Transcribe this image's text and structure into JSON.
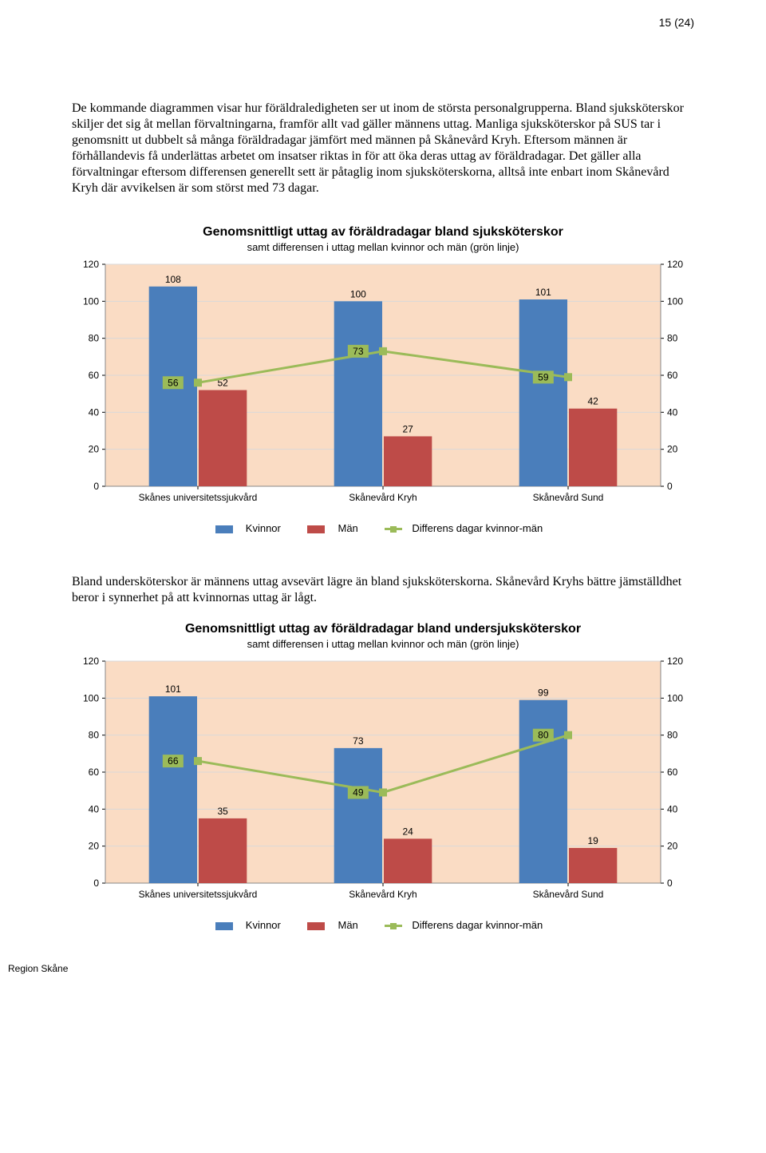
{
  "page": {
    "number": "15 (24)"
  },
  "footer": "Region Skåne",
  "intro": "De kommande diagrammen visar hur föräldraledigheten ser ut inom de största personalgrupperna. Bland sjuksköterskor skiljer det sig åt mellan förvaltningarna, framför allt vad gäller männens uttag. Manliga sjuksköterskor på SUS tar i genomsnitt ut dubbelt så många föräldradagar jämfört med männen på Skånevård Kryh. Eftersom männen är förhållandevis få underlättas arbetet om insatser riktas in för att öka deras uttag av föräldradagar. Det gäller alla förvaltningar eftersom differensen generellt sett är påtaglig inom sjuksköterskorna, alltså inte enbart inom Skånevård Kryh där avvikelsen är som störst med 73 dagar.",
  "mid": "Bland undersköterskor är männens uttag avsevärt lägre än bland sjuksköterskorna. Skånevård Kryhs bättre jämställdhet beror i synnerhet på att kvinnornas uttag är lågt.",
  "chart1": {
    "type": "bar+line",
    "title": "Genomsnittligt uttag av föräldradagar bland sjuksköterskor",
    "subtitle": "samt differensen i uttag mellan kvinnor och män (grön linje)",
    "categories": [
      "Skånes universitetssjukvård",
      "Skånevård Kryh",
      "Skånevård Sund"
    ],
    "kvinnor": [
      108,
      100,
      101
    ],
    "man": [
      52,
      27,
      42
    ],
    "diff": [
      56,
      73,
      59
    ],
    "ylim": [
      0,
      120
    ],
    "ytick_step": 20,
    "plot_bg": "#fadcc4",
    "grid_color": "#d9d9d9",
    "bar_color_kvinnor": "#4a7ebb",
    "bar_color_man": "#be4b48",
    "line_color": "#9bbb59",
    "axis_fontsize": 12,
    "bar_width": 0.7,
    "legend": [
      "Kvinnor",
      "Män",
      "Differens dagar kvinnor-män"
    ]
  },
  "chart2": {
    "type": "bar+line",
    "title": "Genomsnittligt uttag av föräldradagar bland undersjuksköterskor",
    "subtitle": "samt differensen i uttag mellan kvinnor och män (grön linje)",
    "categories": [
      "Skånes universitetssjukvård",
      "Skånevård Kryh",
      "Skånevård Sund"
    ],
    "kvinnor": [
      101,
      73,
      99
    ],
    "man": [
      35,
      24,
      19
    ],
    "diff": [
      66,
      49,
      80
    ],
    "ylim": [
      0,
      120
    ],
    "ytick_step": 20,
    "plot_bg": "#fadcc4",
    "grid_color": "#d9d9d9",
    "bar_color_kvinnor": "#4a7ebb",
    "bar_color_man": "#be4b48",
    "line_color": "#9bbb59",
    "axis_fontsize": 12,
    "bar_width": 0.7,
    "legend": [
      "Kvinnor",
      "Män",
      "Differens dagar kvinnor-män"
    ]
  }
}
